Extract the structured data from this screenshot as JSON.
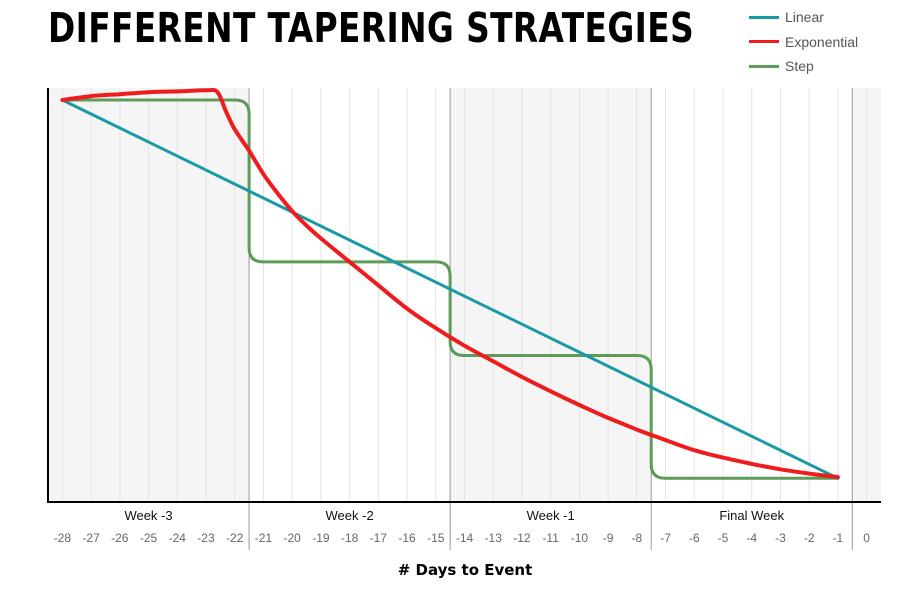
{
  "chart_data": {
    "type": "line",
    "title": "DIFFERENT TAPERING STRATEGIES",
    "xlabel": "# Days to Event",
    "ylabel": "",
    "xlim": [
      -28.5,
      0.5
    ],
    "ylim": [
      0,
      1
    ],
    "grid": true,
    "legend_position": "top-right",
    "x_ticks": [
      -28,
      -27,
      -26,
      -25,
      -24,
      -23,
      -22,
      -21,
      -20,
      -19,
      -18,
      -17,
      -16,
      -15,
      -14,
      -13,
      -12,
      -11,
      -10,
      -9,
      -8,
      -7,
      -6,
      -5,
      -4,
      -3,
      -2,
      -1,
      0
    ],
    "week_groups": [
      {
        "label": "Week -3",
        "from": -28.5,
        "to": -21.5
      },
      {
        "label": "Week -2",
        "from": -21.5,
        "to": -14.5
      },
      {
        "label": "Week -1",
        "from": -14.5,
        "to": -7.5
      },
      {
        "label": "Final Week",
        "from": -7.5,
        "to": -0.5
      }
    ],
    "series": [
      {
        "name": "Linear",
        "color": "#1a9aa6",
        "x": [
          -28,
          -1
        ],
        "y": [
          1.0,
          0.03
        ]
      },
      {
        "name": "Exponential",
        "color": "#ee1c1c",
        "x": [
          -28,
          -27,
          -26,
          -25,
          -24,
          -23,
          -22.6,
          -22.3,
          -22,
          -21.5,
          -21,
          -20.5,
          -20,
          -19.5,
          -19,
          -18,
          -17,
          -16,
          -15,
          -14,
          -13,
          -12,
          -11,
          -10,
          -9,
          -8,
          -7,
          -6,
          -5,
          -4,
          -3,
          -2,
          -1
        ],
        "y": [
          1.0,
          1.01,
          1.015,
          1.02,
          1.022,
          1.025,
          1.02,
          0.97,
          0.925,
          0.87,
          0.81,
          0.76,
          0.715,
          0.678,
          0.645,
          0.585,
          0.525,
          0.465,
          0.415,
          0.37,
          0.33,
          0.29,
          0.253,
          0.218,
          0.185,
          0.155,
          0.128,
          0.102,
          0.083,
          0.067,
          0.053,
          0.042,
          0.033
        ]
      },
      {
        "name": "Step",
        "color": "#5e9a58",
        "x": [
          -28,
          -21.5,
          -21.5,
          -14.5,
          -14.5,
          -7.5,
          -7.5,
          -1
        ],
        "y": [
          1.0,
          1.0,
          0.585,
          0.585,
          0.345,
          0.345,
          0.03,
          0.03
        ]
      }
    ]
  }
}
